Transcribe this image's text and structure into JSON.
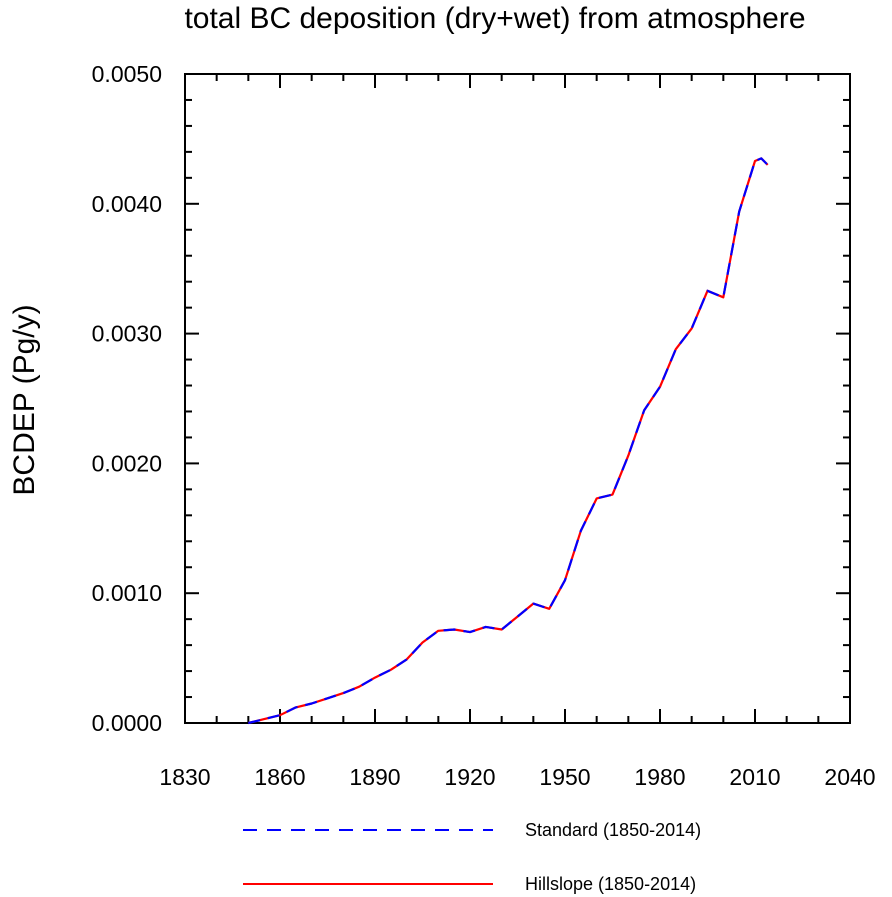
{
  "chart_data": {
    "type": "line",
    "title": "total BC deposition (dry+wet) from atmosphere",
    "ylabel": "BCDEP  (Pg/y)",
    "xlabel": "",
    "xlim": [
      1830,
      2040
    ],
    "ylim": [
      0,
      0.005
    ],
    "xticks": [
      1830,
      1860,
      1890,
      1920,
      1950,
      1980,
      2010,
      2040
    ],
    "xtick_labels": [
      "1830",
      "1860",
      "1890",
      "1920",
      "1950",
      "1980",
      "2010",
      "2040"
    ],
    "yticks": [
      0,
      0.001,
      0.002,
      0.003,
      0.004,
      0.005
    ],
    "ytick_labels": [
      "0.0000",
      "0.0010",
      "0.0020",
      "0.0030",
      "0.0040",
      "0.0050"
    ],
    "x": [
      1850,
      1855,
      1860,
      1865,
      1870,
      1875,
      1880,
      1885,
      1890,
      1895,
      1900,
      1905,
      1910,
      1915,
      1920,
      1925,
      1930,
      1935,
      1940,
      1945,
      1950,
      1955,
      1960,
      1965,
      1970,
      1975,
      1980,
      1985,
      1990,
      1995,
      2000,
      2005,
      2010,
      2012,
      2014
    ],
    "series": [
      {
        "name": "Standard (1850-2014)",
        "color": "#0000ff",
        "style": "dashed",
        "values": [
          0.0,
          3e-05,
          6e-05,
          0.00012,
          0.00015,
          0.00019,
          0.00023,
          0.00028,
          0.00035,
          0.00041,
          0.00049,
          0.00062,
          0.00071,
          0.00072,
          0.0007,
          0.00074,
          0.00072,
          0.00082,
          0.00092,
          0.00088,
          0.0011,
          0.00148,
          0.00173,
          0.00176,
          0.00206,
          0.00241,
          0.00259,
          0.00288,
          0.00304,
          0.00333,
          0.00328,
          0.00394,
          0.00433,
          0.00435,
          0.0043
        ]
      },
      {
        "name": "Hillslope (1850-2014)",
        "color": "#ff0000",
        "style": "solid",
        "values": [
          0.0,
          3e-05,
          6e-05,
          0.00012,
          0.00015,
          0.00019,
          0.00023,
          0.00028,
          0.00035,
          0.00041,
          0.00049,
          0.00062,
          0.00071,
          0.00072,
          0.0007,
          0.00074,
          0.00072,
          0.00082,
          0.00092,
          0.00088,
          0.0011,
          0.00148,
          0.00173,
          0.00176,
          0.00206,
          0.00241,
          0.00259,
          0.00288,
          0.00304,
          0.00333,
          0.00328,
          0.00394,
          0.00433,
          0.00435,
          0.0043
        ]
      }
    ],
    "legend_position": "bottom"
  }
}
